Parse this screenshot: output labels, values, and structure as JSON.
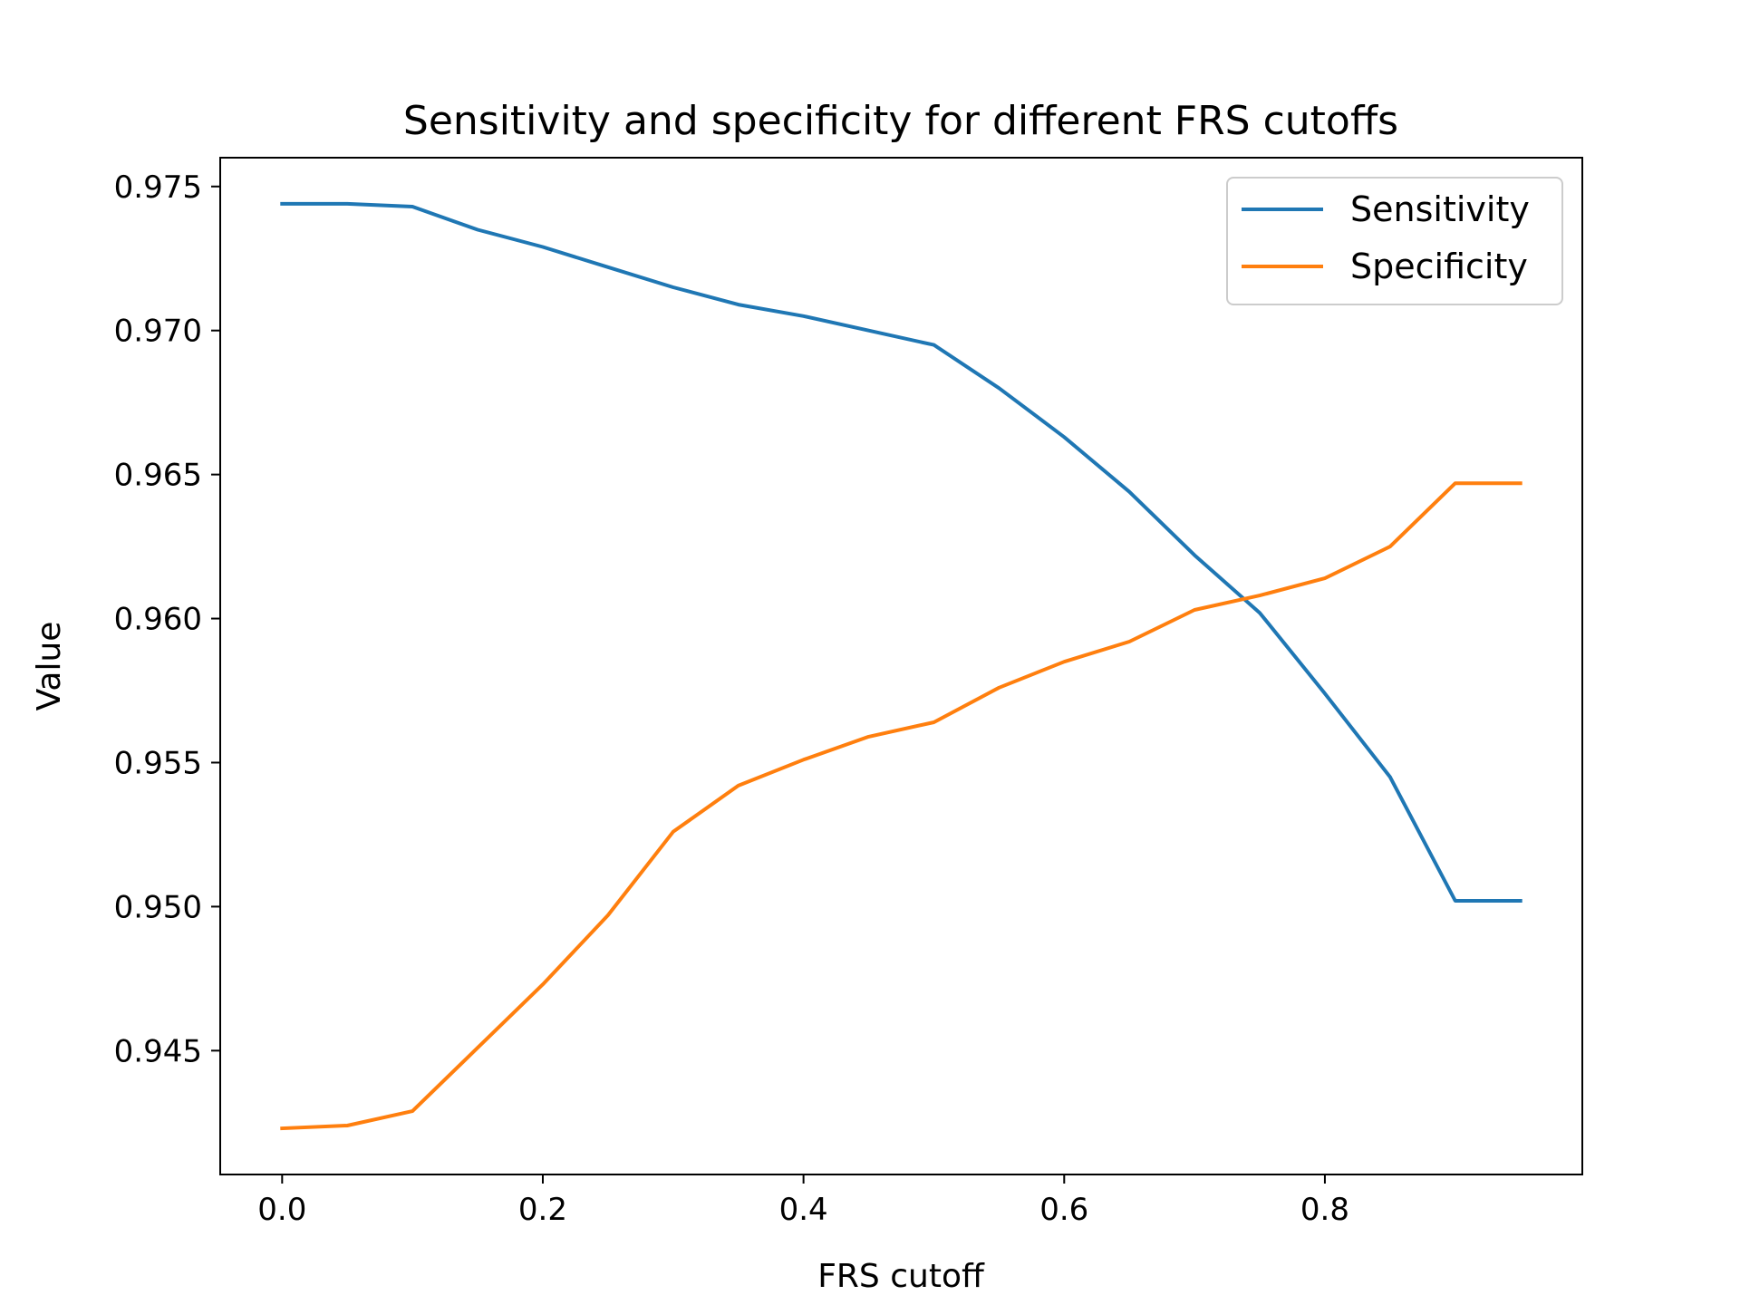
{
  "chart_data": {
    "type": "line",
    "title": "Sensitivity and specificity for different FRS cutoffs",
    "xlabel": "FRS cutoff",
    "ylabel": "Value",
    "xlim": [
      -0.0475,
      0.9975
    ],
    "ylim": [
      0.9407,
      0.976
    ],
    "xticks": [
      0.0,
      0.2,
      0.4,
      0.6,
      0.8
    ],
    "xtick_labels": [
      "0.0",
      "0.2",
      "0.4",
      "0.6",
      "0.8"
    ],
    "yticks": [
      0.945,
      0.95,
      0.955,
      0.96,
      0.965,
      0.97,
      0.975
    ],
    "ytick_labels": [
      "0.945",
      "0.950",
      "0.955",
      "0.960",
      "0.965",
      "0.970",
      "0.975"
    ],
    "grid": false,
    "legend_position": "top-right",
    "x": [
      0.0,
      0.05,
      0.1,
      0.15,
      0.2,
      0.25,
      0.3,
      0.35,
      0.4,
      0.45,
      0.5,
      0.55,
      0.6,
      0.65,
      0.7,
      0.75,
      0.8,
      0.85,
      0.9,
      0.95
    ],
    "series": [
      {
        "name": "Sensitivity",
        "color": "#1f77b4",
        "values": [
          0.9744,
          0.9744,
          0.9743,
          0.9735,
          0.9729,
          0.9722,
          0.9715,
          0.9709,
          0.9705,
          0.97,
          0.9695,
          0.968,
          0.9663,
          0.9644,
          0.9622,
          0.9602,
          0.9574,
          0.9545,
          0.9502,
          0.9502
        ]
      },
      {
        "name": "Specificity",
        "color": "#ff7f0e",
        "values": [
          0.9423,
          0.9424,
          0.9429,
          0.9451,
          0.9473,
          0.9497,
          0.9526,
          0.9542,
          0.9551,
          0.9559,
          0.9564,
          0.9576,
          0.9585,
          0.9592,
          0.9603,
          0.9608,
          0.9614,
          0.9625,
          0.9647,
          0.9647
        ]
      }
    ]
  }
}
